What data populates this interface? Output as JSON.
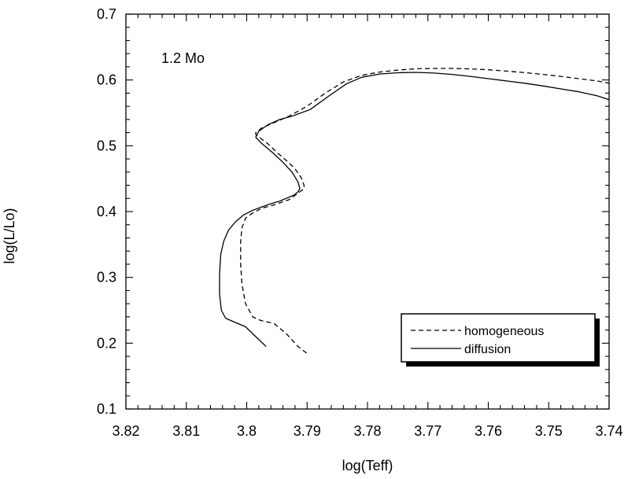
{
  "chart_data": {
    "type": "line",
    "title": "",
    "xlabel": "log(Teff)",
    "ylabel": "log(L/Lo)",
    "xlim": [
      3.82,
      3.74
    ],
    "ylim": [
      0.1,
      0.7
    ],
    "x_reversed": true,
    "grid": false,
    "legend_position": "bottom-right",
    "annotation": "1.2 Mo",
    "xticks": [
      {
        "value": 3.82,
        "label": "3.82"
      },
      {
        "value": 3.81,
        "label": "3.81"
      },
      {
        "value": 3.8,
        "label": "3.8"
      },
      {
        "value": 3.79,
        "label": "3.79"
      },
      {
        "value": 3.78,
        "label": "3.78"
      },
      {
        "value": 3.77,
        "label": "3.77"
      },
      {
        "value": 3.76,
        "label": "3.76"
      },
      {
        "value": 3.75,
        "label": "3.75"
      },
      {
        "value": 3.74,
        "label": "3.74"
      }
    ],
    "yticks": [
      {
        "value": 0.1,
        "label": "0.1"
      },
      {
        "value": 0.2,
        "label": "0.2"
      },
      {
        "value": 0.3,
        "label": "0.3"
      },
      {
        "value": 0.4,
        "label": "0.4"
      },
      {
        "value": 0.5,
        "label": "0.5"
      },
      {
        "value": 0.6,
        "label": "0.6"
      },
      {
        "value": 0.7,
        "label": "0.7"
      }
    ],
    "series": [
      {
        "name": "homogeneous",
        "style": "dashed",
        "color": "#000000",
        "x": [
          3.7901,
          3.7915,
          3.7935,
          3.7955,
          3.7978,
          3.799,
          3.8002,
          3.8008,
          3.801,
          3.801,
          3.8008,
          3.8002,
          3.799,
          3.7975,
          3.7955,
          3.793,
          3.7915,
          3.7905,
          3.7905,
          3.791,
          3.792,
          3.7935,
          3.795,
          3.7965,
          3.7975,
          3.7985,
          3.7985,
          3.7975,
          3.7955,
          3.793,
          3.79,
          3.787,
          3.784,
          3.781,
          3.778,
          3.775,
          3.772,
          3.769,
          3.766,
          3.763,
          3.76,
          3.757,
          3.754,
          3.751,
          3.748,
          3.745,
          3.742,
          3.74
        ],
        "y": [
          0.185,
          0.195,
          0.215,
          0.23,
          0.235,
          0.24,
          0.26,
          0.29,
          0.32,
          0.355,
          0.375,
          0.39,
          0.398,
          0.405,
          0.41,
          0.418,
          0.428,
          0.435,
          0.44,
          0.452,
          0.465,
          0.478,
          0.49,
          0.503,
          0.51,
          0.517,
          0.52,
          0.527,
          0.535,
          0.545,
          0.56,
          0.58,
          0.597,
          0.607,
          0.612,
          0.615,
          0.617,
          0.6175,
          0.6175,
          0.6168,
          0.6155,
          0.6135,
          0.6112,
          0.6085,
          0.6055,
          0.602,
          0.5985,
          0.595
        ]
      },
      {
        "name": "diffusion",
        "style": "solid",
        "color": "#000000",
        "x": [
          3.7968,
          3.7985,
          3.8002,
          3.802,
          3.8035,
          3.8042,
          3.8045,
          3.8045,
          3.8043,
          3.8038,
          3.803,
          3.8018,
          3.8005,
          3.799,
          3.7975,
          3.796,
          3.7945,
          3.7935,
          3.7922,
          3.7915,
          3.7912,
          3.7915,
          3.7925,
          3.794,
          3.7955,
          3.7968,
          3.7977,
          3.7985,
          3.798,
          3.7965,
          3.7945,
          3.7925,
          3.7895,
          3.7865,
          3.7835,
          3.781,
          3.778,
          3.775,
          3.772,
          3.769,
          3.766,
          3.763,
          3.76,
          3.757,
          3.754,
          3.751,
          3.748,
          3.745,
          3.742,
          3.74
        ],
        "y": [
          0.195,
          0.21,
          0.225,
          0.232,
          0.238,
          0.25,
          0.275,
          0.305,
          0.335,
          0.355,
          0.372,
          0.385,
          0.395,
          0.402,
          0.407,
          0.412,
          0.416,
          0.42,
          0.425,
          0.43,
          0.435,
          0.445,
          0.46,
          0.475,
          0.488,
          0.498,
          0.505,
          0.513,
          0.522,
          0.532,
          0.54,
          0.545,
          0.555,
          0.575,
          0.594,
          0.604,
          0.609,
          0.611,
          0.6115,
          0.6105,
          0.6085,
          0.6055,
          0.602,
          0.5985,
          0.595,
          0.591,
          0.5865,
          0.582,
          0.576,
          0.57
        ]
      }
    ]
  }
}
